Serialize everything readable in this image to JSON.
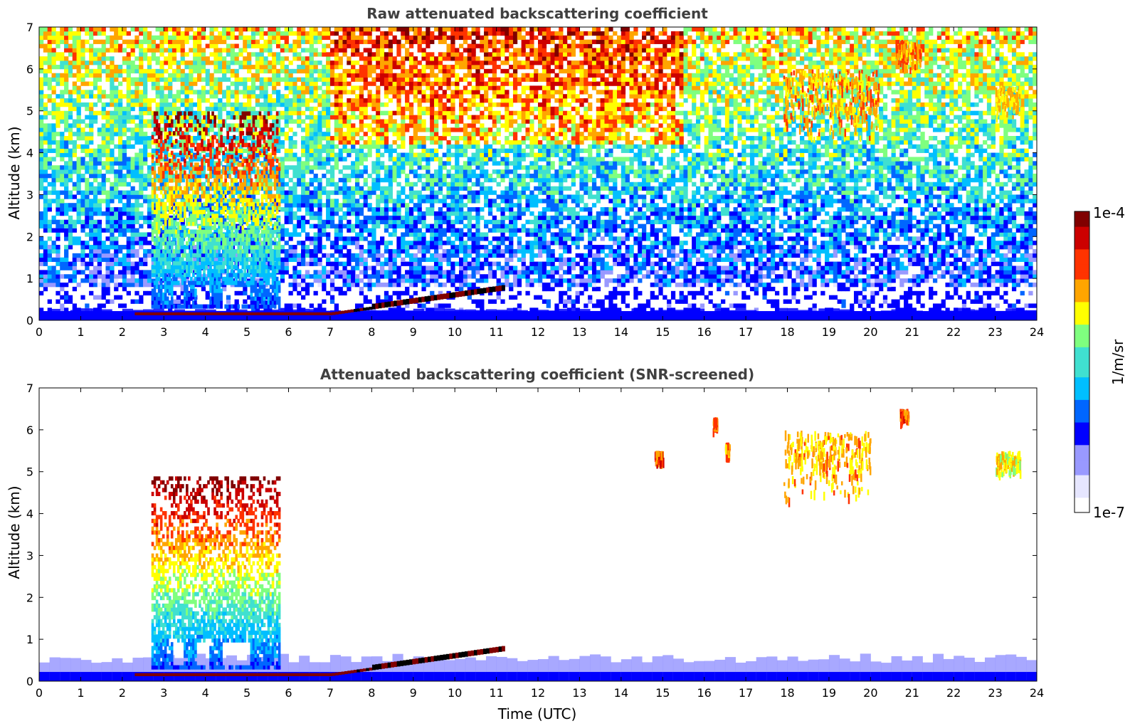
{
  "chart_data": [
    {
      "type": "heatmap",
      "title": "Raw attenuated backscattering coefficient",
      "xlabel": "",
      "ylabel": "Altitude (km)",
      "xlim": [
        0,
        24
      ],
      "ylim": [
        0,
        7
      ],
      "xticks": [
        "0",
        "1",
        "2",
        "3",
        "4",
        "5",
        "6",
        "7",
        "8",
        "9",
        "10",
        "11",
        "12",
        "13",
        "14",
        "15",
        "16",
        "17",
        "18",
        "19",
        "20",
        "21",
        "22",
        "23",
        "24"
      ],
      "yticks": [
        "0",
        "1",
        "2",
        "3",
        "4",
        "5",
        "6",
        "7"
      ],
      "features": [
        {
          "kind": "boundary-layer",
          "x": [
            0,
            24
          ],
          "top_km": 0.25,
          "level": 0.22
        },
        {
          "kind": "aerosol-column",
          "x": [
            2.7,
            5.8
          ],
          "y": [
            0.3,
            5.0
          ],
          "level": 0.55
        },
        {
          "kind": "strong-layer",
          "x": [
            2.3,
            11.2
          ],
          "y": [
            0.05,
            0.75
          ],
          "level": 0.97
        },
        {
          "kind": "noise-high",
          "x": [
            7,
            15.5
          ],
          "y": [
            4.5,
            7
          ],
          "level": 0.9
        },
        {
          "kind": "ice-cloud",
          "x": [
            17.9,
            20.2
          ],
          "y": [
            4.2,
            6.0
          ],
          "level": 0.75
        },
        {
          "kind": "ice-cloud",
          "x": [
            20.6,
            21.2
          ],
          "y": [
            6.0,
            6.7
          ],
          "level": 0.78
        },
        {
          "kind": "ice-cloud",
          "x": [
            23.0,
            23.6
          ],
          "y": [
            4.8,
            5.6
          ],
          "level": 0.7
        }
      ]
    },
    {
      "type": "heatmap",
      "title": "Attenuated backscattering coefficient (SNR-screened)",
      "xlabel": "Time (UTC)",
      "ylabel": "Altitude (km)",
      "xlim": [
        0,
        24
      ],
      "ylim": [
        0,
        7
      ],
      "xticks": [
        "0",
        "1",
        "2",
        "3",
        "4",
        "5",
        "6",
        "7",
        "8",
        "9",
        "10",
        "11",
        "12",
        "13",
        "14",
        "15",
        "16",
        "17",
        "18",
        "19",
        "20",
        "21",
        "22",
        "23",
        "24"
      ],
      "yticks": [
        "0",
        "1",
        "2",
        "3",
        "4",
        "5",
        "6",
        "7"
      ],
      "features": [
        {
          "kind": "boundary-layer",
          "x": [
            0,
            24
          ],
          "top_km": 0.55,
          "level": 0.15
        },
        {
          "kind": "aerosol-column",
          "x": [
            2.7,
            5.8
          ],
          "y": [
            0.3,
            4.9
          ],
          "level": 0.55
        },
        {
          "kind": "strong-layer",
          "x": [
            2.3,
            11.2
          ],
          "y": [
            0.05,
            0.75
          ],
          "level": 0.97
        },
        {
          "kind": "ice-cloud",
          "x": [
            14.8,
            15.0
          ],
          "y": [
            5.2,
            5.5
          ],
          "level": 0.82
        },
        {
          "kind": "ice-cloud",
          "x": [
            16.2,
            16.3
          ],
          "y": [
            6.0,
            6.3
          ],
          "level": 0.8
        },
        {
          "kind": "ice-cloud",
          "x": [
            16.5,
            16.6
          ],
          "y": [
            5.3,
            5.7
          ],
          "level": 0.75
        },
        {
          "kind": "ice-cloud",
          "x": [
            17.9,
            20.0
          ],
          "y": [
            4.2,
            6.0
          ],
          "level": 0.72
        },
        {
          "kind": "ice-cloud",
          "x": [
            20.7,
            20.9
          ],
          "y": [
            6.2,
            6.5
          ],
          "level": 0.8
        },
        {
          "kind": "ice-cloud",
          "x": [
            23.0,
            23.6
          ],
          "y": [
            4.9,
            5.5
          ],
          "level": 0.68
        }
      ]
    }
  ],
  "colorbar": {
    "label": "1/m/sr",
    "max_label": "1e-4",
    "min_label": "1e-7",
    "colors": [
      "#ffffff",
      "#e6e6ff",
      "#9999ff",
      "#0000ff",
      "#0066ff",
      "#00bfff",
      "#40e0d0",
      "#7fff7f",
      "#ffff00",
      "#ffa500",
      "#ff3300",
      "#cc0000",
      "#800000"
    ]
  }
}
